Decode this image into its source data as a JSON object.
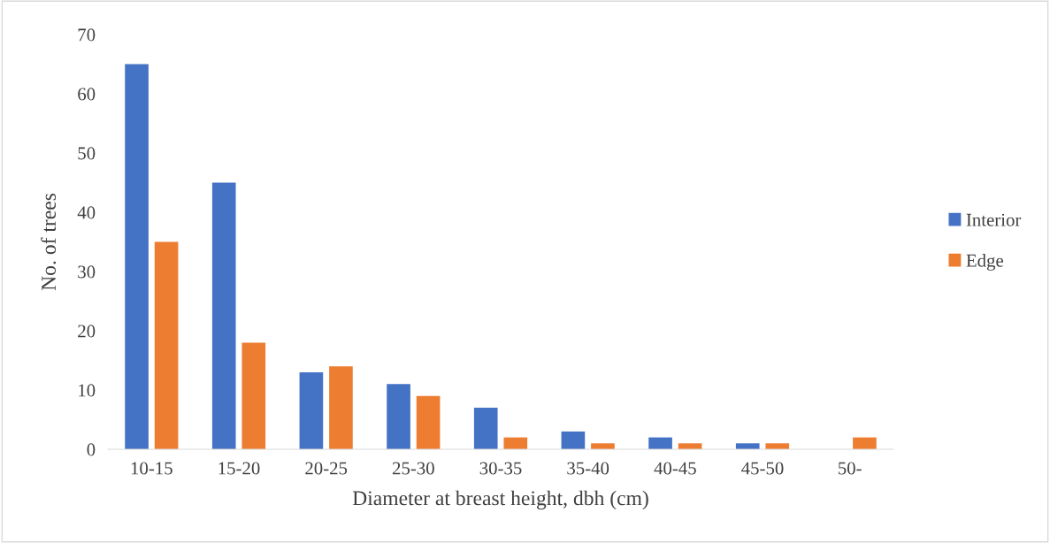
{
  "chart_data": {
    "type": "bar",
    "xlabel": "Diameter at breast height, dbh (cm)",
    "ylabel": "No. of trees",
    "categories": [
      "10-15",
      "15-20",
      "20-25",
      "25-30",
      "30-35",
      "35-40",
      "40-45",
      "45-50",
      "50-"
    ],
    "series": [
      {
        "name": "Interior",
        "color": "#4472c4",
        "values": [
          65,
          45,
          13,
          11,
          7,
          3,
          2,
          1,
          0
        ]
      },
      {
        "name": "Edge",
        "color": "#ed7d31",
        "values": [
          35,
          18,
          14,
          9,
          2,
          1,
          1,
          1,
          2
        ]
      }
    ],
    "ylim": [
      0,
      70
    ],
    "yticks": [
      0,
      10,
      20,
      30,
      40,
      50,
      60,
      70
    ],
    "grid": false,
    "legend": "right"
  }
}
